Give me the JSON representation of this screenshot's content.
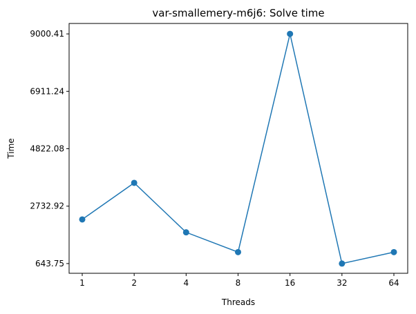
{
  "chart_data": {
    "type": "line",
    "title": "var-smallemery-m6j6: Solve time",
    "xlabel": "Threads",
    "ylabel": "Time",
    "categories": [
      "1",
      "2",
      "4",
      "8",
      "16",
      "32",
      "64"
    ],
    "x_scale": "log2",
    "series": [
      {
        "values": [
          2250,
          3580,
          1780,
          1060,
          9000.41,
          643.75,
          1060
        ]
      }
    ],
    "yticks": [
      643.75,
      2732.92,
      4822.08,
      6911.24,
      9000.41
    ],
    "ytick_labels": [
      "643.75",
      "2732.92",
      "4822.08",
      "6911.24",
      "9000.41"
    ],
    "ylim": [
      290,
      9380
    ],
    "grid": false,
    "legend": "none",
    "colors": {
      "line": "#1f77b4",
      "marker": "#1f77b4"
    }
  }
}
